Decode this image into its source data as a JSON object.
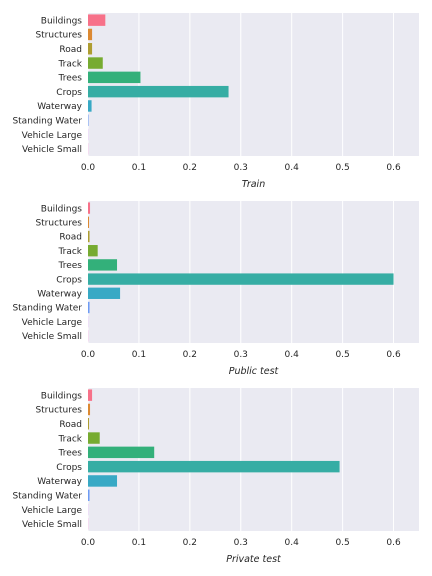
{
  "chart_data": [
    {
      "type": "bar",
      "orientation": "horizontal",
      "categories": [
        "Buildings",
        "Structures",
        "Road",
        "Track",
        "Trees",
        "Crops",
        "Waterway",
        "Standing Water",
        "Vehicle Large",
        "Vehicle Small"
      ],
      "values": [
        0.034,
        0.008,
        0.008,
        0.029,
        0.103,
        0.276,
        0.007,
        0.001,
        0.0003,
        0.0003
      ],
      "xlabel": "Train",
      "xlim": [
        0,
        0.65
      ],
      "xticks": [
        "0.0",
        "0.1",
        "0.2",
        "0.3",
        "0.4",
        "0.5",
        "0.6"
      ],
      "grid": true
    },
    {
      "type": "bar",
      "orientation": "horizontal",
      "categories": [
        "Buildings",
        "Structures",
        "Road",
        "Track",
        "Trees",
        "Crops",
        "Waterway",
        "Standing Water",
        "Vehicle Large",
        "Vehicle Small"
      ],
      "values": [
        0.004,
        0.002,
        0.003,
        0.019,
        0.057,
        0.6,
        0.063,
        0.003,
        0.0003,
        0.0003
      ],
      "xlabel": "Public test",
      "xlim": [
        0,
        0.65
      ],
      "xticks": [
        "0.0",
        "0.1",
        "0.2",
        "0.3",
        "0.4",
        "0.5",
        "0.6"
      ],
      "grid": true
    },
    {
      "type": "bar",
      "orientation": "horizontal",
      "categories": [
        "Buildings",
        "Structures",
        "Road",
        "Track",
        "Trees",
        "Crops",
        "Waterway",
        "Standing Water",
        "Vehicle Large",
        "Vehicle Small"
      ],
      "values": [
        0.008,
        0.004,
        0.002,
        0.023,
        0.13,
        0.494,
        0.057,
        0.003,
        0.0003,
        0.0003
      ],
      "xlabel": "Private test",
      "xlim": [
        0,
        0.65
      ],
      "xticks": [
        "0.0",
        "0.1",
        "0.2",
        "0.3",
        "0.4",
        "0.5",
        "0.6"
      ],
      "grid": true
    }
  ],
  "style": {
    "background": "#eaeaf2",
    "grid": "#ffffff",
    "bar_colors": [
      "#f77189",
      "#dc8932",
      "#ae9d31",
      "#77ab31",
      "#33b07a",
      "#36ada4",
      "#38a9c5",
      "#6e9bf4",
      "#cc7af4",
      "#f565cc"
    ]
  }
}
